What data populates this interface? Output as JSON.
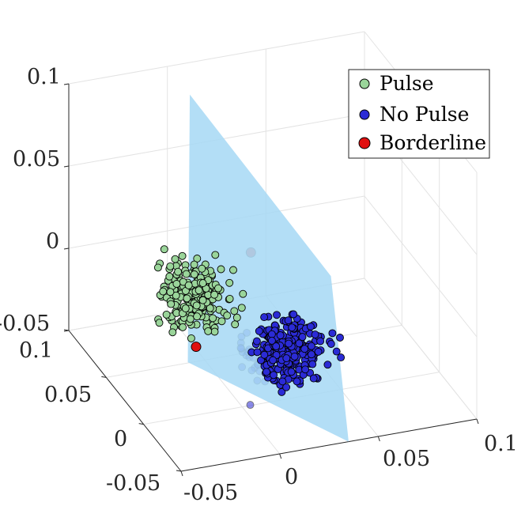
{
  "chart_data": {
    "type": "scatter",
    "projection": "3d",
    "title": "",
    "xlabel": "",
    "ylabel": "",
    "zlabel": "",
    "xlim": [
      -0.05,
      0.1
    ],
    "ylim": [
      -0.05,
      0.1
    ],
    "zlim": [
      -0.05,
      0.1
    ],
    "x_ticks": [
      "-0.05",
      "0",
      "0.05",
      "0.1"
    ],
    "y_ticks": [
      "-0.05",
      "0",
      "0.05",
      "0.1"
    ],
    "z_ticks": [
      "-0.05",
      "0",
      "0.05",
      "0.1"
    ],
    "grid": true,
    "legend_position": "top-right",
    "decision_plane": {
      "label": "",
      "color": "#a6d8f5"
    },
    "series": [
      {
        "name": "Pulse",
        "color": "#9ad59a",
        "summary": {
          "x_center": -0.012,
          "x_spread": 0.016,
          "y_center": 0.035,
          "y_spread": 0.018,
          "z_center": 0.0,
          "z_spread": 0.018
        },
        "count": 240
      },
      {
        "name": "No Pulse",
        "color": "#2b2bd6",
        "summary": {
          "x_center": 0.022,
          "x_spread": 0.018,
          "y_center": 0.0,
          "y_spread": 0.016,
          "z_center": -0.02,
          "z_spread": 0.016
        },
        "count": 330
      },
      {
        "name": "Borderline",
        "color": "#e01010",
        "points": [
          {
            "x": -0.012,
            "y": 0.03,
            "z": -0.028
          },
          {
            "x": 0.012,
            "y": 0.02,
            "z": 0.03
          }
        ]
      }
    ]
  }
}
